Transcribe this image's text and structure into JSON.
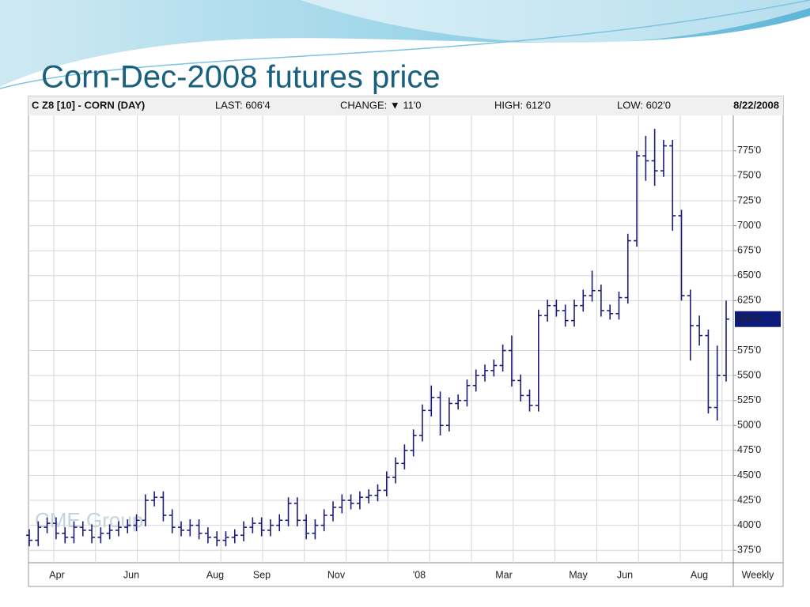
{
  "title": "Corn-Dec-2008 futures price",
  "chart_data": {
    "type": "ohlc",
    "header": {
      "symbol": "C Z8 [10] - CORN (DAY)",
      "last": "LAST: 606'4",
      "change": "CHANGE: ▼ 11'0",
      "high": "HIGH: 612'0",
      "low": "LOW: 602'0",
      "date": "8/22/2008"
    },
    "watermark": "CME Group",
    "x_labels": [
      "Apr",
      "Jun",
      "Aug",
      "Sep",
      "Nov",
      "'08",
      "Mar",
      "May",
      "Jun",
      "Aug"
    ],
    "period": "Weekly",
    "color": "#1c1c78",
    "ylim": [
      362.5,
      810.5
    ],
    "yticks": [
      {
        "value": 375,
        "label": "375'0"
      },
      {
        "value": 400,
        "label": "400'0"
      },
      {
        "value": 425,
        "label": "425'0"
      },
      {
        "value": 450,
        "label": "450'0"
      },
      {
        "value": 475,
        "label": "475'0"
      },
      {
        "value": 500,
        "label": "500'0"
      },
      {
        "value": 525,
        "label": "525'0"
      },
      {
        "value": 550,
        "label": "550'0"
      },
      {
        "value": 575,
        "label": "575'0"
      },
      {
        "value": 625,
        "label": "625'0"
      },
      {
        "value": 650,
        "label": "650'0"
      },
      {
        "value": 675,
        "label": "675'0"
      },
      {
        "value": 700,
        "label": "700'0"
      },
      {
        "value": 725,
        "label": "725'0"
      },
      {
        "value": 750,
        "label": "750'0"
      },
      {
        "value": 775,
        "label": "775'0"
      }
    ],
    "last_marker": {
      "value": 606.5,
      "label": "606'4"
    },
    "grid": true,
    "open": [
      390,
      385,
      398,
      402,
      392,
      388,
      398,
      395,
      388,
      392,
      395,
      398,
      400,
      405,
      425,
      428,
      410,
      398,
      395,
      400,
      392,
      388,
      385,
      388,
      390,
      398,
      402,
      395,
      400,
      405,
      422,
      405,
      392,
      400,
      410,
      418,
      425,
      422,
      428,
      430,
      435,
      448,
      462,
      475,
      490,
      515,
      528,
      500,
      522,
      525,
      540,
      550,
      555,
      560,
      575,
      545,
      530,
      520,
      610,
      620,
      615,
      605,
      620,
      630,
      635,
      615,
      612,
      628,
      685,
      770,
      765,
      755,
      780,
      710,
      630,
      600,
      590,
      518,
      550
    ],
    "high": [
      396,
      404,
      408,
      408,
      398,
      404,
      404,
      401,
      398,
      401,
      404,
      406,
      411,
      431,
      434,
      434,
      416,
      404,
      406,
      406,
      398,
      394,
      394,
      396,
      404,
      408,
      408,
      406,
      411,
      428,
      428,
      411,
      406,
      416,
      424,
      431,
      431,
      434,
      436,
      441,
      454,
      468,
      481,
      496,
      521,
      540,
      534,
      528,
      531,
      546,
      556,
      561,
      566,
      581,
      590,
      551,
      536,
      616,
      626,
      626,
      621,
      626,
      636,
      655,
      641,
      621,
      634,
      692,
      775,
      790,
      797,
      786,
      786,
      716,
      636,
      610,
      596,
      580,
      625
    ],
    "low": [
      379,
      379,
      392,
      386,
      382,
      382,
      389,
      382,
      382,
      386,
      389,
      392,
      394,
      399,
      419,
      404,
      392,
      389,
      389,
      386,
      382,
      379,
      379,
      382,
      384,
      392,
      389,
      389,
      394,
      399,
      399,
      386,
      386,
      394,
      404,
      412,
      416,
      416,
      422,
      424,
      429,
      442,
      456,
      469,
      484,
      509,
      490,
      494,
      516,
      519,
      534,
      544,
      549,
      554,
      539,
      524,
      514,
      514,
      604,
      609,
      599,
      599,
      614,
      624,
      609,
      606,
      606,
      622,
      679,
      745,
      740,
      749,
      695,
      625,
      565,
      580,
      512,
      505,
      544
    ],
    "close": [
      385,
      398,
      402,
      392,
      388,
      398,
      395,
      388,
      392,
      395,
      398,
      400,
      405,
      425,
      428,
      410,
      398,
      395,
      400,
      392,
      388,
      385,
      388,
      390,
      398,
      402,
      395,
      400,
      405,
      422,
      405,
      392,
      400,
      410,
      418,
      425,
      422,
      428,
      430,
      435,
      448,
      462,
      475,
      490,
      515,
      528,
      500,
      522,
      525,
      540,
      550,
      555,
      560,
      575,
      545,
      530,
      520,
      610,
      620,
      615,
      605,
      620,
      630,
      635,
      615,
      612,
      628,
      685,
      770,
      765,
      755,
      780,
      710,
      630,
      600,
      590,
      518,
      550,
      606.5
    ]
  }
}
